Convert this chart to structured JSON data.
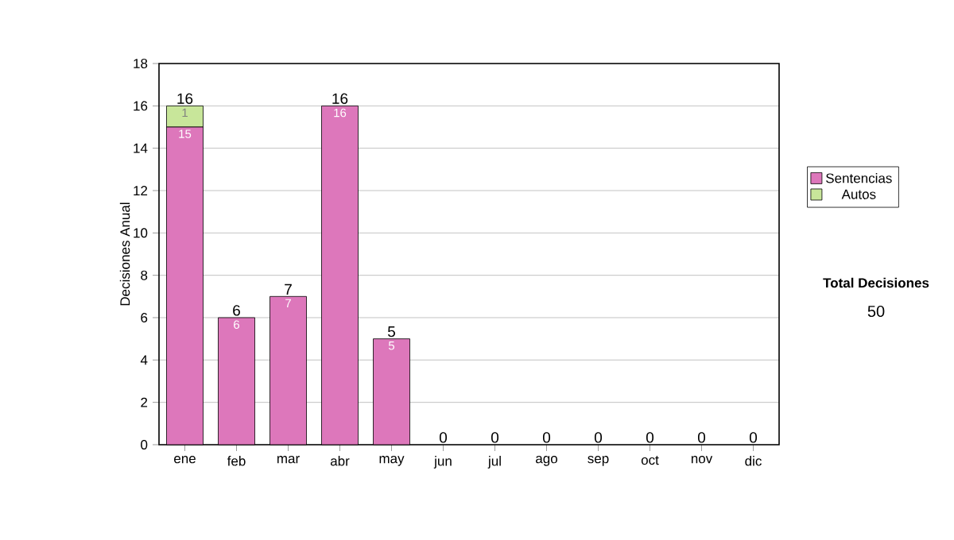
{
  "chart_data": {
    "type": "bar",
    "stacked": true,
    "ylabel": "Decisiones Anual",
    "categories": [
      "ene",
      "feb",
      "mar",
      "abr",
      "may",
      "jun",
      "jul",
      "ago",
      "sep",
      "oct",
      "nov",
      "dic"
    ],
    "series": [
      {
        "name": "Sentencias",
        "color": "#dd77bb",
        "values": [
          15,
          6,
          7,
          16,
          5,
          0,
          0,
          0,
          0,
          0,
          0,
          0
        ],
        "value_labels": [
          "15",
          "6",
          "7",
          "16",
          "5",
          null,
          null,
          null,
          null,
          null,
          null,
          null
        ]
      },
      {
        "name": "Autos",
        "color": "#c8e69a",
        "values": [
          1,
          0,
          0,
          0,
          0,
          0,
          0,
          0,
          0,
          0,
          0,
          0
        ],
        "value_labels": [
          "1",
          null,
          null,
          null,
          null,
          null,
          null,
          null,
          null,
          null,
          null,
          null
        ]
      }
    ],
    "totals": [
      "16",
      "6",
      "7",
      "16",
      "5",
      "0",
      "0",
      "0",
      "0",
      "0",
      "0",
      "0"
    ],
    "ylim": [
      0,
      18
    ],
    "yticks": [
      0,
      2,
      4,
      6,
      8,
      10,
      12,
      14,
      16,
      18
    ],
    "grid": "y",
    "legend": "right",
    "annotations": [
      "Total Decisiones",
      "50"
    ]
  }
}
